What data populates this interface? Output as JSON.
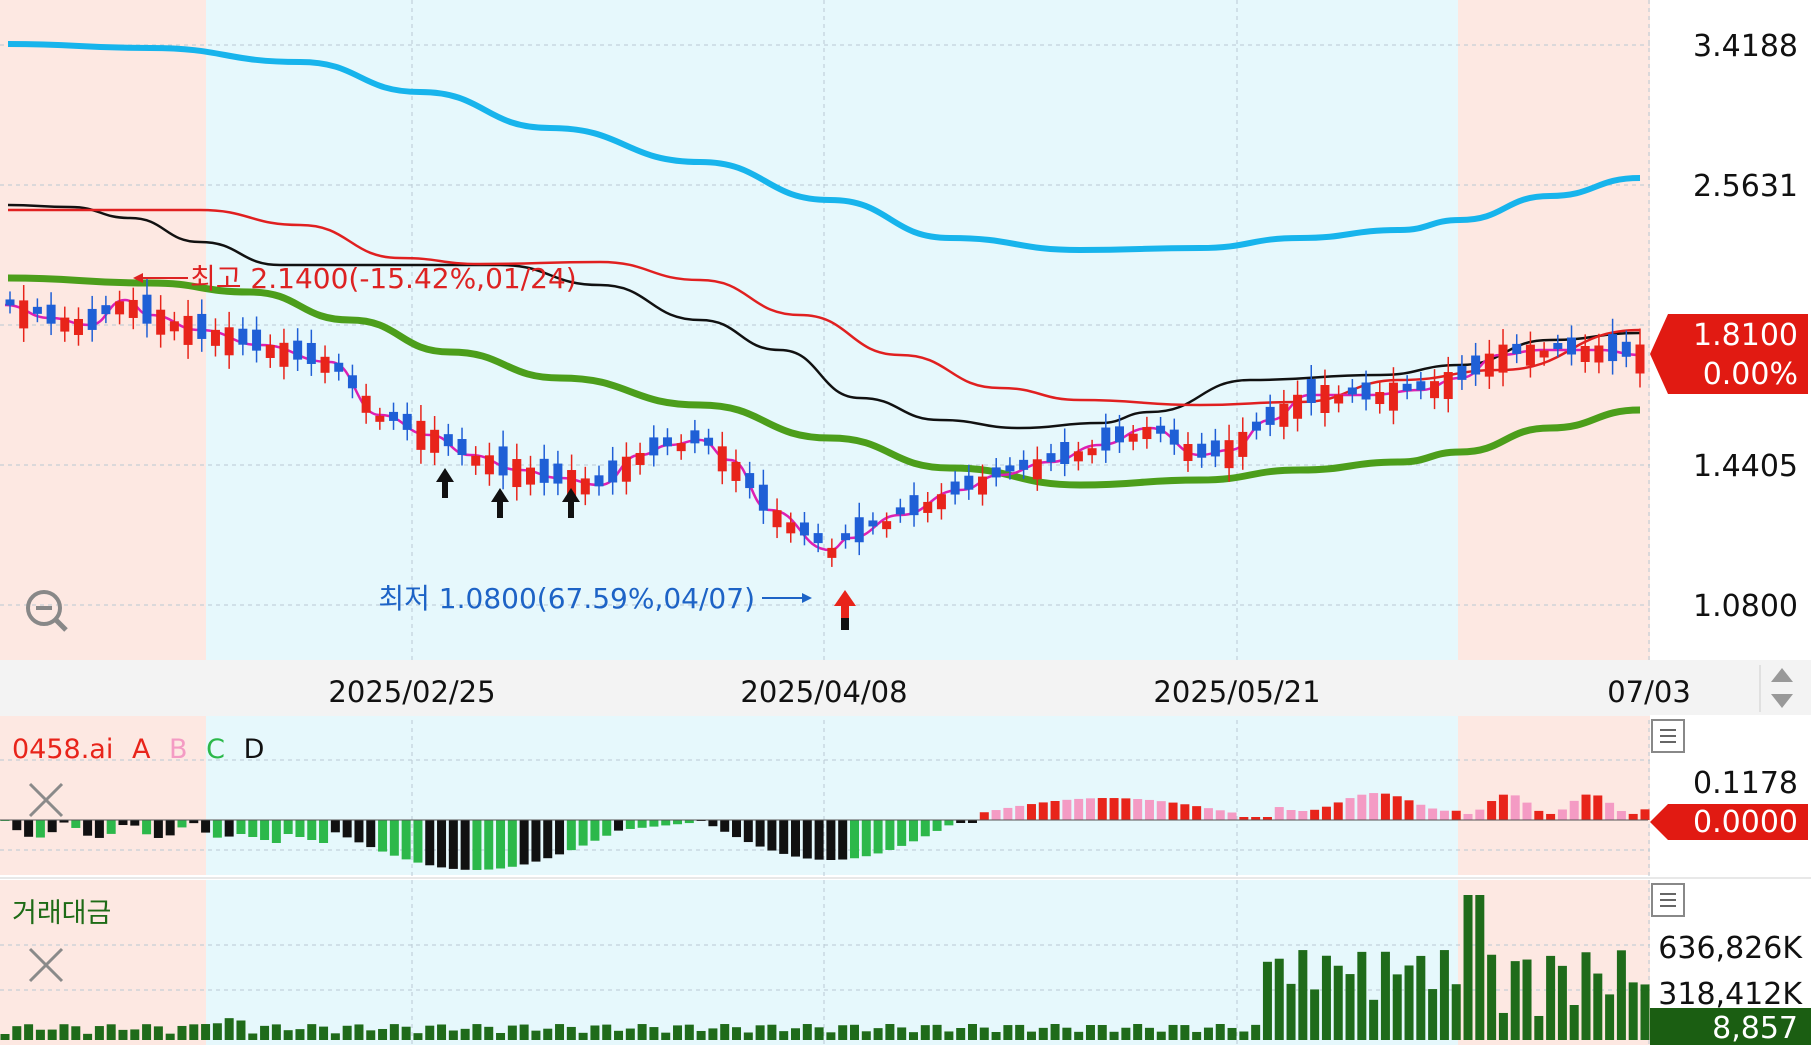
{
  "chart_data": {
    "type": "candlestick",
    "price_axis": {
      "ticks": [
        "3.4188",
        "2.5631",
        "1.8100",
        "1.4405",
        "1.0800"
      ],
      "current_price": "1.8100",
      "current_change": "0.00%"
    },
    "date_axis": {
      "ticks": [
        "2025/02/25",
        "2025/04/08",
        "2025/05/21",
        "07/03"
      ]
    },
    "annotations": {
      "high": "최고 2.1400(-15.42%,01/24)",
      "low": "최저 1.0800(67.59%,04/07)"
    },
    "indicator": {
      "name": "0458.ai",
      "series_labels": [
        "A",
        "B",
        "C",
        "D"
      ],
      "series_colors": [
        "#e8241a",
        "#f49bc4",
        "#2cb84a",
        "#111111"
      ],
      "axis_tick": "0.1178",
      "current_value": "0.0000"
    },
    "volume": {
      "title": "거래대금",
      "axis_ticks": [
        "636,826K",
        "318,412K"
      ],
      "current_value": "8,857"
    },
    "colors": {
      "up": "#e8241a",
      "down": "#1f5fd6",
      "upper_band": "#17b4ec",
      "lower_band": "#4c9e1b",
      "mid_line": "#111111",
      "ma_red": "#e02020",
      "ma_magenta": "#dd1fb3",
      "zone_pink": "#fde8e2",
      "zone_blue": "#e6f8fc",
      "volume_bar": "#1f6b1a"
    }
  }
}
